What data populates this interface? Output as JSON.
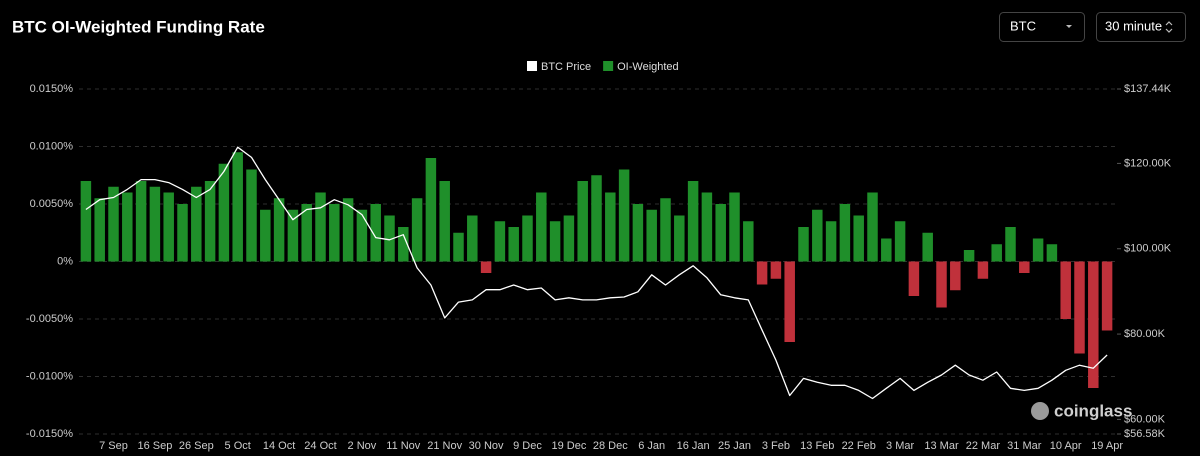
{
  "header": {
    "title": "BTC OI-Weighted Funding Rate",
    "asset": "BTC",
    "interval": "30 minute"
  },
  "watermark": "coinglass",
  "chart_data": {
    "type": "combo",
    "legend": "top",
    "grid": true,
    "categories": [
      null,
      null,
      "7 Sep",
      null,
      null,
      "16 Sep",
      null,
      null,
      "26 Sep",
      null,
      null,
      "5 Oct",
      null,
      null,
      "14 Oct",
      null,
      null,
      "24 Oct",
      null,
      null,
      "2 Nov",
      null,
      null,
      "11 Nov",
      null,
      null,
      "21 Nov",
      null,
      null,
      "30 Nov",
      null,
      null,
      "9 Dec",
      null,
      null,
      "19 Dec",
      null,
      null,
      "28 Dec",
      null,
      null,
      "6 Jan",
      null,
      null,
      "16 Jan",
      null,
      null,
      "25 Jan",
      null,
      null,
      "3 Feb",
      null,
      null,
      "13 Feb",
      null,
      null,
      "22 Feb",
      null,
      null,
      "3 Mar",
      null,
      null,
      "13 Mar",
      null,
      null,
      "22 Mar",
      null,
      null,
      "31 Mar",
      null,
      null,
      "10 Apr",
      null,
      null,
      "19 Apr"
    ],
    "ylim": [
      -0.015,
      0.015
    ],
    "yticks": [
      {
        "value": 0.015,
        "label": "0.0150%"
      },
      {
        "value": 0.01,
        "label": "0.0100%"
      },
      {
        "value": 0.005,
        "label": "0.0050%"
      },
      {
        "value": 0,
        "label": "0%"
      },
      {
        "value": -0.005,
        "label": "-0.0050%"
      },
      {
        "value": -0.01,
        "label": "-0.0100%"
      },
      {
        "value": -0.015,
        "label": "-0.0150%"
      }
    ],
    "y2lim": [
      56580,
      137440
    ],
    "y2ticks": [
      {
        "value": 137440,
        "label": "$137.44K"
      },
      {
        "value": 120000,
        "label": "$120.00K"
      },
      {
        "value": 100000,
        "label": "$100.00K"
      },
      {
        "value": 80000,
        "label": "$80.00K"
      },
      {
        "value": 60000,
        "label": "$60.00K"
      },
      {
        "value": 56580,
        "label": "$56.58K"
      }
    ],
    "series": [
      {
        "name": "BTC Price",
        "type": "line",
        "axis": "y2",
        "color": "#ffffff",
        "values": [
          109200,
          111500,
          112000,
          113900,
          116200,
          116200,
          115500,
          113900,
          112000,
          113900,
          118100,
          123800,
          121400,
          116200,
          111500,
          106800,
          109200,
          109600,
          111500,
          110300,
          108000,
          102600,
          102100,
          103300,
          95500,
          91500,
          83800,
          87500,
          88000,
          90400,
          90400,
          91500,
          90400,
          90800,
          88000,
          88500,
          88000,
          88000,
          88500,
          88700,
          89900,
          93900,
          91500,
          93900,
          96000,
          93200,
          89200,
          88500,
          88000,
          80900,
          73900,
          65600,
          69600,
          68700,
          68000,
          68000,
          66800,
          64900,
          67300,
          69600,
          66800,
          68700,
          70400,
          72700,
          70400,
          69200,
          71100,
          67300,
          66800,
          67300,
          69200,
          71500,
          72700,
          72000,
          75100
        ]
      },
      {
        "name": "OI-Weighted",
        "type": "bar",
        "color": "#1f8f2a",
        "negative_color": "#c0313b",
        "values": [
          0.007,
          0.0055,
          0.0065,
          0.006,
          0.007,
          0.0065,
          0.006,
          0.005,
          0.0065,
          0.007,
          0.0085,
          0.0095,
          0.008,
          0.0045,
          0.0055,
          0.0045,
          0.005,
          0.006,
          0.005,
          0.0055,
          0.0045,
          0.005,
          0.004,
          0.003,
          0.0055,
          0.009,
          0.007,
          0.0025,
          0.004,
          -0.001,
          0.0035,
          0.003,
          0.004,
          0.006,
          0.0035,
          0.004,
          0.007,
          0.0075,
          0.006,
          0.008,
          0.005,
          0.0045,
          0.0055,
          0.004,
          0.007,
          0.006,
          0.005,
          0.006,
          0.0035,
          -0.002,
          -0.0015,
          -0.007,
          0.003,
          0.0045,
          0.0035,
          0.005,
          0.004,
          0.006,
          0.002,
          0.0035,
          -0.003,
          0.0025,
          -0.004,
          -0.0025,
          0.001,
          -0.0015,
          0.0015,
          0.003,
          -0.001,
          0.002,
          0.0015,
          -0.005,
          -0.008,
          -0.011,
          -0.006
        ]
      }
    ]
  }
}
